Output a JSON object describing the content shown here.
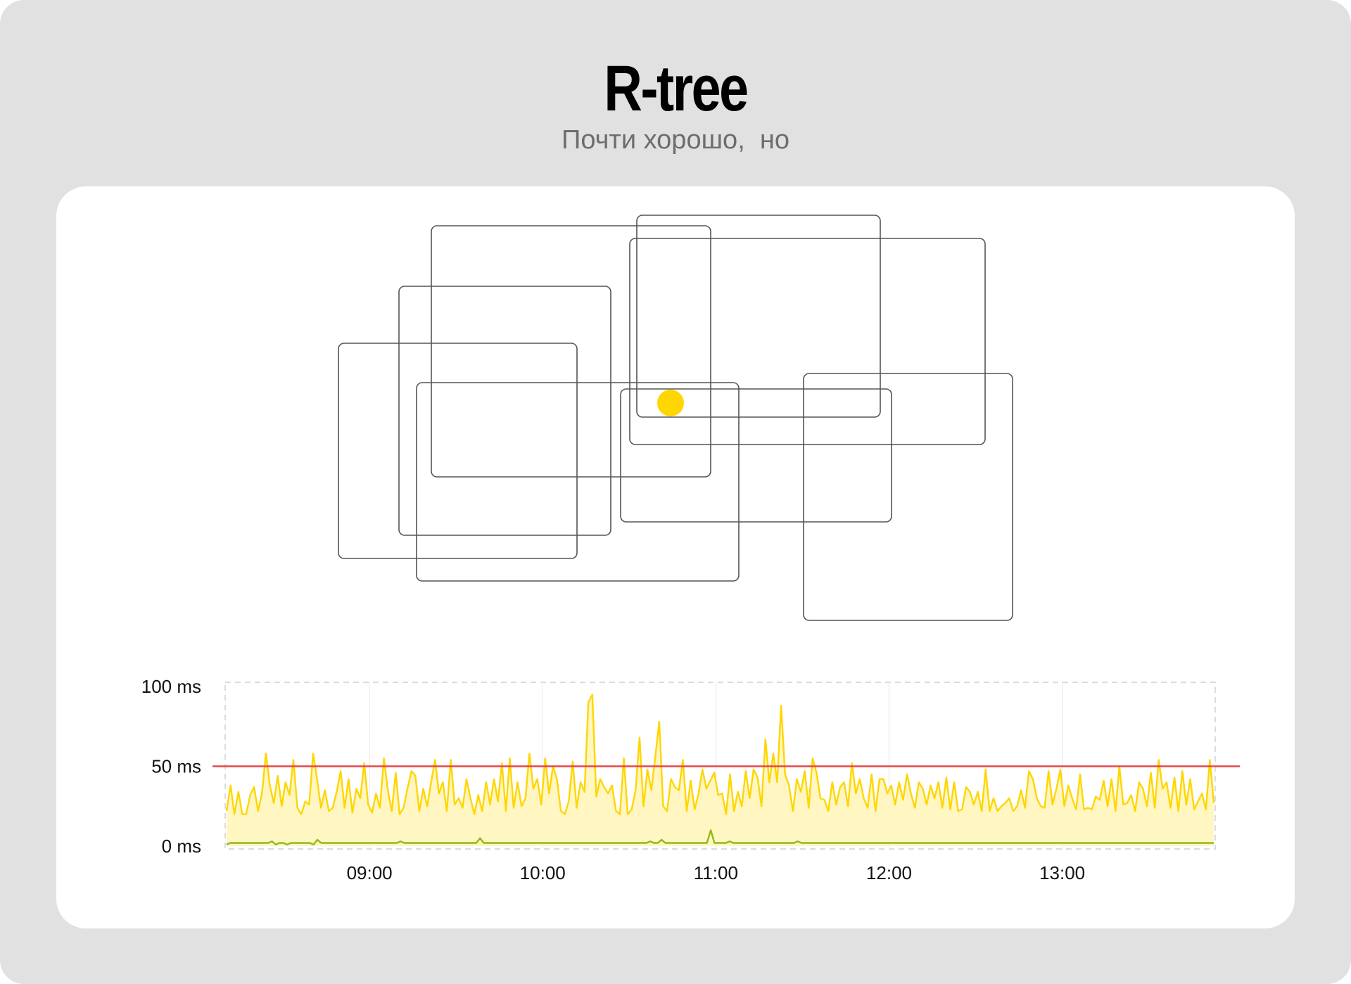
{
  "header": {
    "title": "R-tree",
    "subtitle": "Почти хорошо,  но"
  },
  "diagram": {
    "rectangle_count": 9,
    "query_point_color": "#ffd600",
    "rectangle_stroke_color": "#555555"
  },
  "chart_data": {
    "type": "line",
    "title": "",
    "xlabel": "",
    "ylabel": "",
    "x_range": [
      "08:10",
      "13:53"
    ],
    "x_ticks": [
      "09:00",
      "10:00",
      "11:00",
      "12:00",
      "13:00"
    ],
    "y_ticks": [
      "0 ms",
      "50 ms",
      "100 ms"
    ],
    "ylim": [
      0,
      100
    ],
    "unit": "ms",
    "grid": true,
    "threshold": {
      "value": 50,
      "color": "#e8474a"
    },
    "series": [
      {
        "color": "#ffd600",
        "fill": "#fff6c2",
        "values": [
          22,
          38,
          20,
          34,
          20,
          20,
          32,
          37,
          22,
          33,
          58,
          38,
          27,
          44,
          25,
          40,
          32,
          54,
          24,
          20,
          28,
          26,
          58,
          42,
          24,
          35,
          22,
          24,
          34,
          47,
          24,
          42,
          21,
          36,
          30,
          52,
          26,
          21,
          33,
          24,
          55,
          35,
          22,
          46,
          20,
          24,
          36,
          47,
          44,
          22,
          36,
          25,
          40,
          54,
          33,
          40,
          22,
          54,
          26,
          30,
          24,
          42,
          30,
          20,
          32,
          22,
          40,
          26,
          42,
          28,
          52,
          22,
          55,
          24,
          40,
          25,
          30,
          58,
          36,
          42,
          26,
          55,
          33,
          50,
          42,
          22,
          20,
          28,
          53,
          24,
          40,
          34,
          90,
          95,
          31,
          42,
          37,
          33,
          38,
          22,
          20,
          55,
          20,
          23,
          35,
          68,
          25,
          48,
          35,
          56,
          78,
          25,
          22,
          42,
          37,
          35,
          54,
          22,
          41,
          23,
          33,
          48,
          36,
          41,
          46,
          32,
          33,
          20,
          45,
          22,
          34,
          25,
          47,
          30,
          48,
          43,
          25,
          67,
          40,
          58,
          40,
          88,
          45,
          38,
          22,
          42,
          34,
          47,
          24,
          55,
          46,
          30,
          29,
          22,
          40,
          26,
          37,
          40,
          25,
          52,
          33,
          42,
          30,
          24,
          45,
          22,
          42,
          42,
          33,
          38,
          26,
          40,
          29,
          45,
          33,
          24,
          40,
          36,
          26,
          38,
          30,
          40,
          24,
          43,
          23,
          40,
          22,
          23,
          37,
          34,
          26,
          34,
          22,
          48,
          22,
          30,
          22,
          25,
          27,
          30,
          22,
          25,
          35,
          24,
          47,
          42,
          30,
          25,
          24,
          47,
          26,
          36,
          48,
          25,
          38,
          30,
          23,
          45,
          23,
          24,
          23,
          31,
          29,
          41,
          25,
          42,
          22,
          50,
          26,
          27,
          32,
          22,
          40,
          36,
          25,
          46,
          24,
          54,
          36,
          40,
          24,
          43,
          22,
          47,
          26,
          42,
          23,
          28,
          33,
          23,
          54,
          27
        ]
      },
      {
        "color": "#8dbb1c",
        "values": [
          1,
          2,
          2,
          2,
          2,
          2,
          2,
          2,
          2,
          2,
          2,
          2,
          3,
          1,
          2,
          2,
          1,
          2,
          2,
          2,
          2,
          2,
          2,
          1,
          4,
          2,
          2,
          2,
          2,
          2,
          2,
          2,
          2,
          2,
          2,
          2,
          2,
          2,
          2,
          2,
          2,
          2,
          2,
          2,
          2,
          2,
          3,
          2,
          2,
          2,
          2,
          2,
          2,
          2,
          2,
          2,
          2,
          2,
          2,
          2,
          2,
          2,
          2,
          2,
          2,
          2,
          2,
          5,
          2,
          2,
          2,
          2,
          2,
          2,
          2,
          2,
          2,
          2,
          2,
          2,
          2,
          2,
          2,
          2,
          2,
          2,
          2,
          2,
          2,
          2,
          2,
          2,
          2,
          2,
          2,
          2,
          2,
          2,
          2,
          2,
          2,
          2,
          2,
          2,
          2,
          2,
          2,
          2,
          2,
          2,
          2,
          2,
          3,
          2,
          2,
          4,
          2,
          2,
          2,
          2,
          2,
          2,
          2,
          2,
          2,
          2,
          2,
          2,
          10,
          2,
          2,
          2,
          2,
          3,
          2,
          2,
          2,
          2,
          2,
          2,
          2,
          2,
          2,
          2,
          2,
          2,
          2,
          2,
          2,
          2,
          2,
          3,
          2,
          2,
          2,
          2,
          2,
          2,
          2,
          2,
          2,
          2,
          2,
          2,
          2,
          2,
          2,
          2,
          2,
          2,
          2,
          2,
          2,
          2,
          2,
          2,
          2,
          2,
          2,
          2,
          2,
          2,
          2,
          2,
          2,
          2,
          2,
          2,
          2,
          2,
          2,
          2,
          2,
          2,
          2,
          2,
          2,
          2,
          2,
          2,
          2,
          2,
          2,
          2,
          2,
          2,
          2,
          2,
          2,
          2,
          2,
          2,
          2,
          2,
          2,
          2,
          2,
          2,
          2,
          2,
          2,
          2,
          2,
          2,
          2,
          2,
          2,
          2,
          2,
          2,
          2,
          2,
          2,
          2,
          2,
          2,
          2,
          2,
          2,
          2,
          2,
          2,
          2,
          2,
          2,
          2,
          2,
          2,
          2,
          2,
          2,
          2,
          2,
          2,
          2,
          2,
          2,
          2,
          2,
          2,
          2,
          2
        ]
      }
    ]
  }
}
